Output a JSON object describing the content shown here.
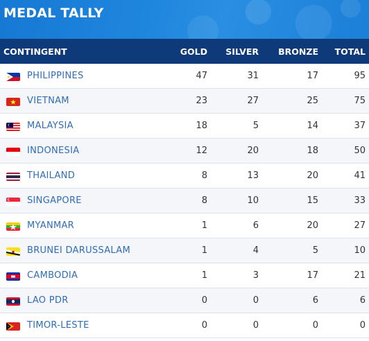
{
  "banner": {
    "title": "MEDAL TALLY"
  },
  "headers": {
    "contingent": "CONTINGENT",
    "gold": "GOLD",
    "silver": "SILVER",
    "bronze": "BRONZE",
    "total": "TOTAL"
  },
  "rows": [
    {
      "country": "PHILIPPINES",
      "gold": "47",
      "silver": "31",
      "bronze": "17",
      "total": "95",
      "flag": "philippines-flag-icon"
    },
    {
      "country": "VIETNAM",
      "gold": "23",
      "silver": "27",
      "bronze": "25",
      "total": "75",
      "flag": "vietnam-flag-icon"
    },
    {
      "country": "MALAYSIA",
      "gold": "18",
      "silver": "5",
      "bronze": "14",
      "total": "37",
      "flag": "malaysia-flag-icon"
    },
    {
      "country": "INDONESIA",
      "gold": "12",
      "silver": "20",
      "bronze": "18",
      "total": "50",
      "flag": "indonesia-flag-icon"
    },
    {
      "country": "THAILAND",
      "gold": "8",
      "silver": "13",
      "bronze": "20",
      "total": "41",
      "flag": "thailand-flag-icon"
    },
    {
      "country": "SINGAPORE",
      "gold": "8",
      "silver": "10",
      "bronze": "15",
      "total": "33",
      "flag": "singapore-flag-icon"
    },
    {
      "country": "MYANMAR",
      "gold": "1",
      "silver": "6",
      "bronze": "20",
      "total": "27",
      "flag": "myanmar-flag-icon"
    },
    {
      "country": "BRUNEI DARUSSALAM",
      "gold": "1",
      "silver": "4",
      "bronze": "5",
      "total": "10",
      "flag": "brunei-flag-icon"
    },
    {
      "country": "CAMBODIA",
      "gold": "1",
      "silver": "3",
      "bronze": "17",
      "total": "21",
      "flag": "cambodia-flag-icon"
    },
    {
      "country": "LAO PDR",
      "gold": "0",
      "silver": "0",
      "bronze": "6",
      "total": "6",
      "flag": "laos-flag-icon"
    },
    {
      "country": "TIMOR-LESTE",
      "gold": "0",
      "silver": "0",
      "bronze": "0",
      "total": "0",
      "flag": "timor-leste-flag-icon"
    }
  ],
  "colors": {
    "banner": "#1f86de",
    "header": "#0e3a7a",
    "country_text": "#2f6db5",
    "alt_row": "#f4f6f9"
  }
}
